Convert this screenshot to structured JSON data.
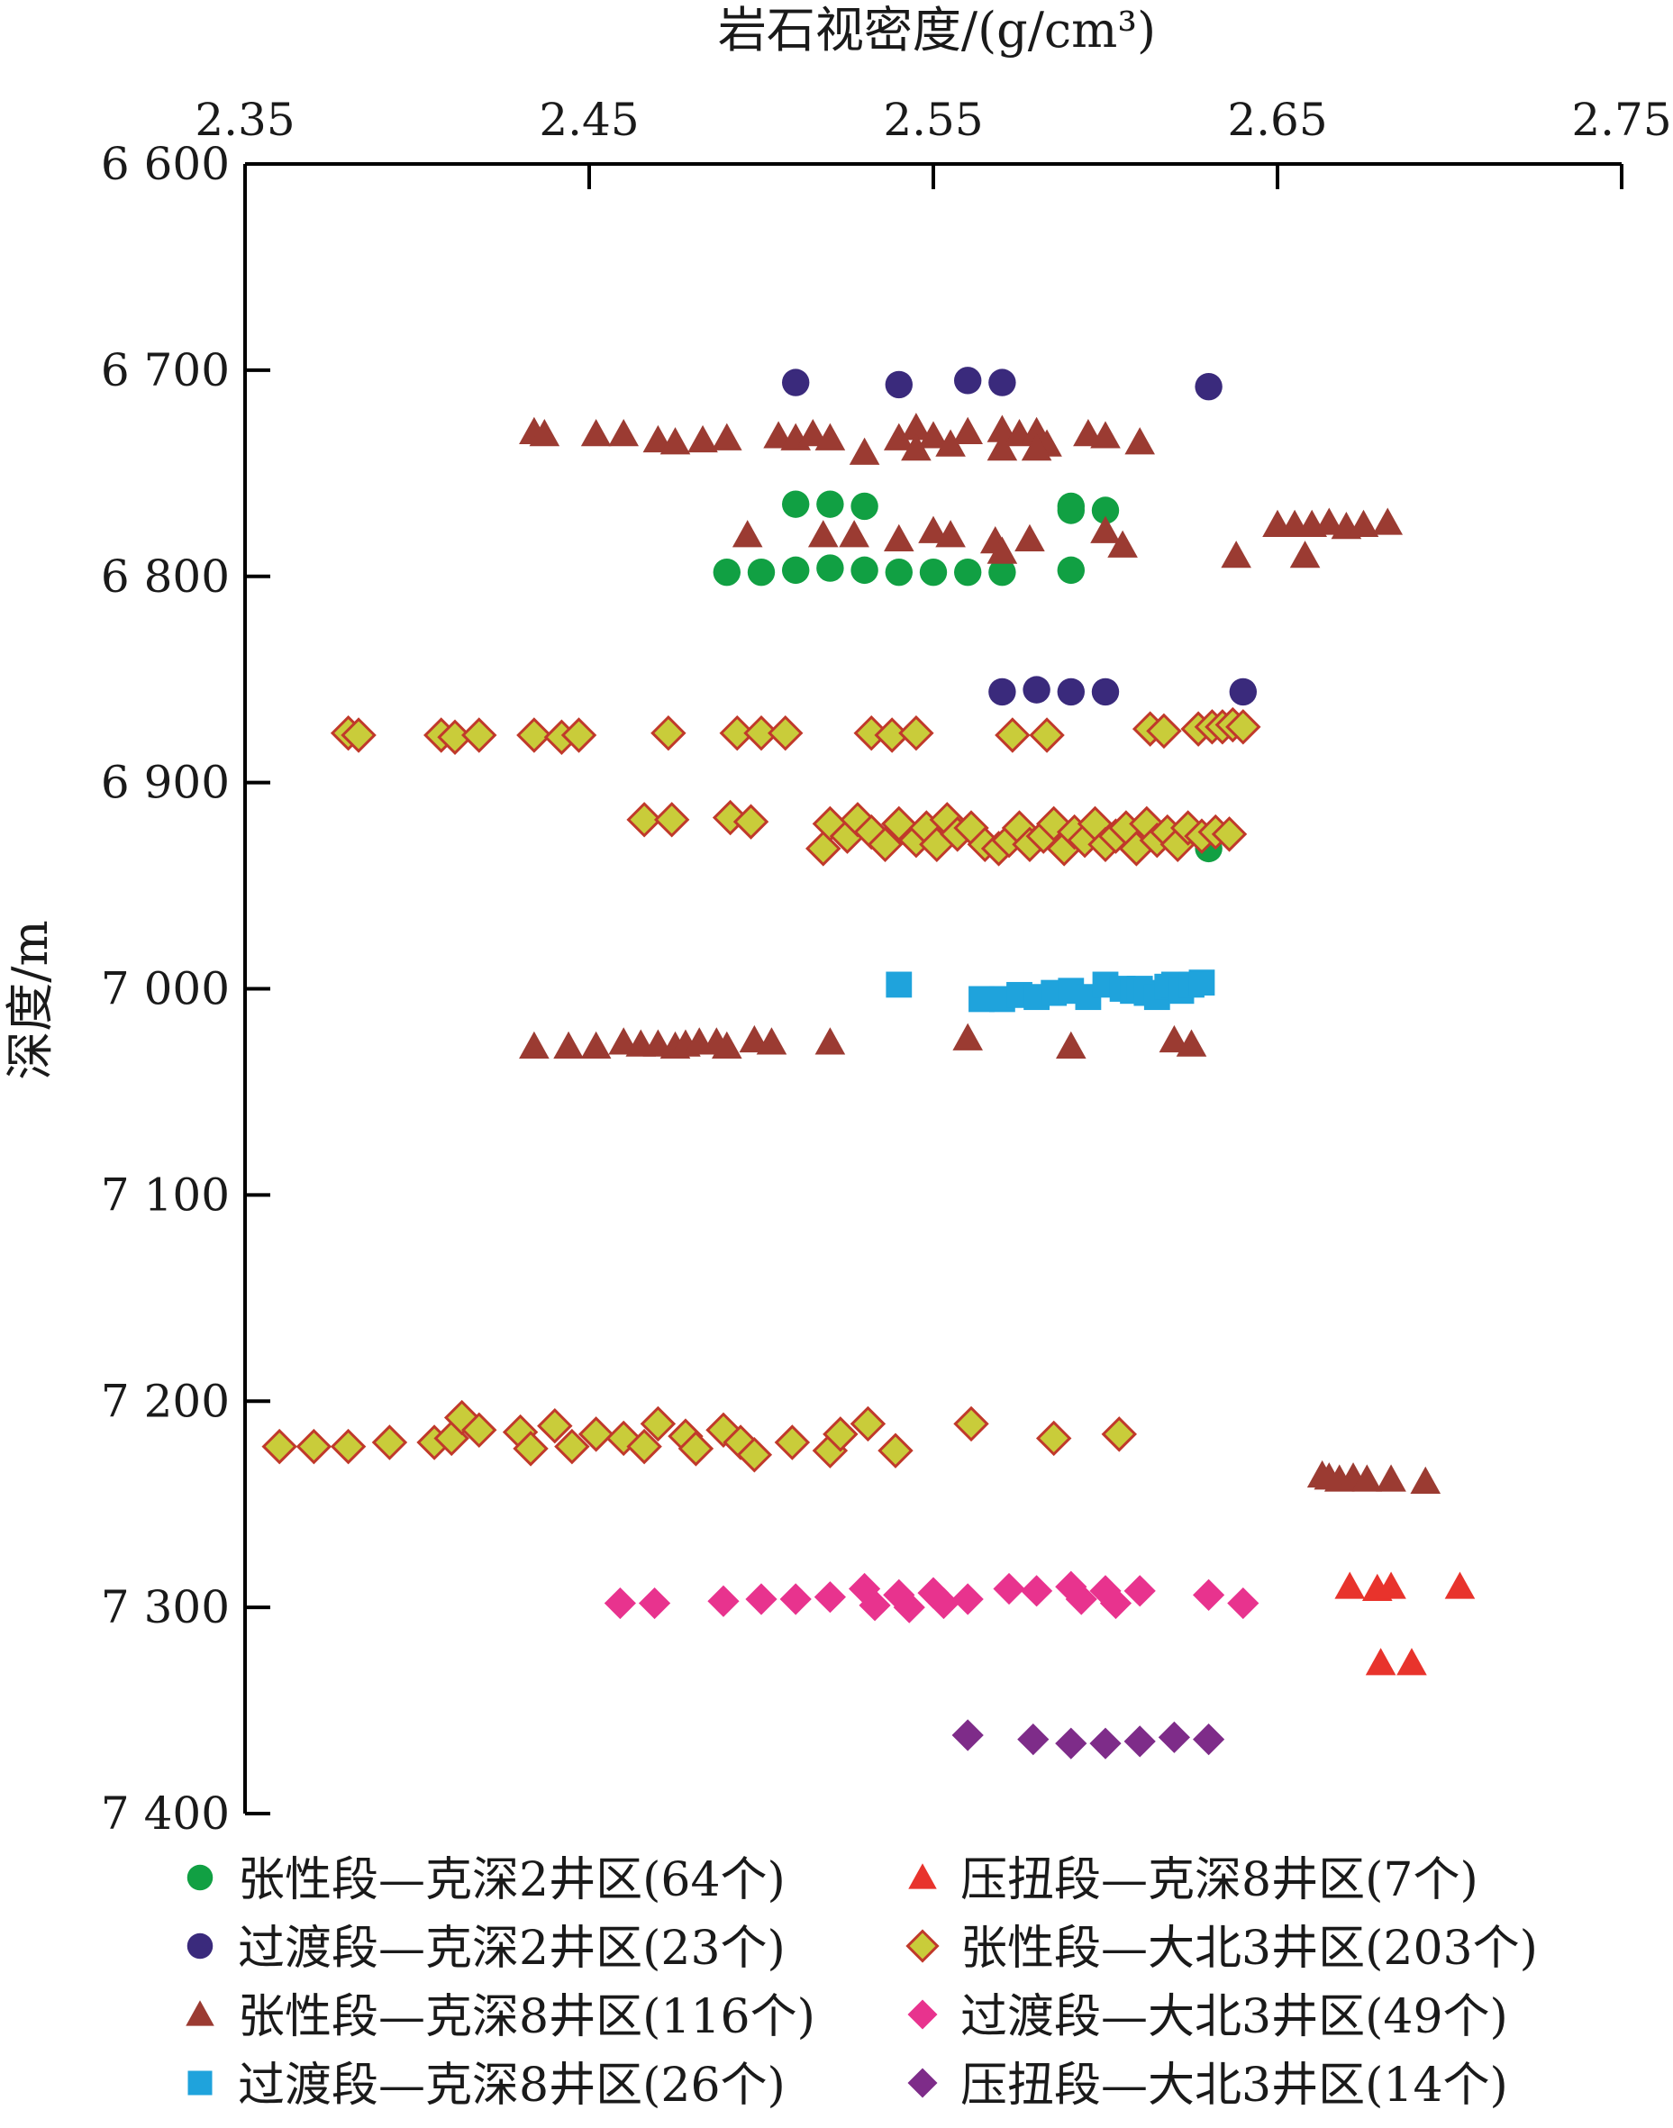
{
  "chart_data": {
    "type": "scatter",
    "xlabel": "岩石视密度/(g/cm³)",
    "ylabel": "深度/m",
    "x_axis_position": "top",
    "y_axis_inverted": true,
    "xlim": [
      2.35,
      2.75
    ],
    "ylim": [
      6600,
      7400
    ],
    "x_ticks": [
      2.35,
      2.45,
      2.55,
      2.65,
      2.75
    ],
    "x_tick_labels": [
      "2.35",
      "2.45",
      "2.55",
      "2.65",
      "2.75"
    ],
    "y_ticks": [
      6600,
      6700,
      6800,
      6900,
      7000,
      7100,
      7200,
      7300,
      7400
    ],
    "y_tick_labels": [
      "6 600",
      "6 700",
      "6 800",
      "6 900",
      "7 000",
      "7 100",
      "7 200",
      "7 300",
      "7 400"
    ],
    "grid": false,
    "legend_position": "bottom",
    "series": [
      {
        "name": "张性段—克深2井区(64个)",
        "color": "#11a043",
        "marker": "circle",
        "points": [
          [
            2.51,
            6765
          ],
          [
            2.52,
            6765
          ],
          [
            2.53,
            6766
          ],
          [
            2.59,
            6766
          ],
          [
            2.59,
            6768
          ],
          [
            2.6,
            6768
          ],
          [
            2.49,
            6798
          ],
          [
            2.5,
            6798
          ],
          [
            2.51,
            6797
          ],
          [
            2.52,
            6796
          ],
          [
            2.53,
            6797
          ],
          [
            2.54,
            6798
          ],
          [
            2.55,
            6798
          ],
          [
            2.56,
            6798
          ],
          [
            2.57,
            6798
          ],
          [
            2.59,
            6797
          ],
          [
            2.63,
            6932
          ]
        ]
      },
      {
        "name": "过渡段—克深2井区(23个)",
        "color": "#3a2a7c",
        "marker": "circle",
        "points": [
          [
            2.51,
            6706
          ],
          [
            2.54,
            6707
          ],
          [
            2.56,
            6705
          ],
          [
            2.57,
            6706
          ],
          [
            2.63,
            6708
          ],
          [
            2.57,
            6856
          ],
          [
            2.58,
            6855
          ],
          [
            2.59,
            6856
          ],
          [
            2.6,
            6856
          ],
          [
            2.64,
            6856
          ]
        ]
      },
      {
        "name": "张性段—克深8井区(116个)",
        "color": "#9b3b32",
        "marker": "triangle",
        "points": [
          [
            2.434,
            6730
          ],
          [
            2.437,
            6731
          ],
          [
            2.452,
            6731
          ],
          [
            2.46,
            6731
          ],
          [
            2.47,
            6734
          ],
          [
            2.475,
            6735
          ],
          [
            2.483,
            6734
          ],
          [
            2.49,
            6733
          ],
          [
            2.505,
            6732
          ],
          [
            2.51,
            6733
          ],
          [
            2.515,
            6731
          ],
          [
            2.52,
            6733
          ],
          [
            2.53,
            6740
          ],
          [
            2.54,
            6733
          ],
          [
            2.545,
            6728
          ],
          [
            2.55,
            6732
          ],
          [
            2.555,
            6736
          ],
          [
            2.56,
            6730
          ],
          [
            2.57,
            6729
          ],
          [
            2.575,
            6731
          ],
          [
            2.58,
            6730
          ],
          [
            2.583,
            6736
          ],
          [
            2.595,
            6731
          ],
          [
            2.6,
            6732
          ],
          [
            2.61,
            6735
          ],
          [
            2.545,
            6738
          ],
          [
            2.57,
            6738
          ],
          [
            2.58,
            6738
          ],
          [
            2.496,
            6780
          ],
          [
            2.518,
            6780
          ],
          [
            2.527,
            6780
          ],
          [
            2.54,
            6782
          ],
          [
            2.55,
            6778
          ],
          [
            2.555,
            6780
          ],
          [
            2.568,
            6783
          ],
          [
            2.578,
            6782
          ],
          [
            2.57,
            6788
          ],
          [
            2.6,
            6778
          ],
          [
            2.605,
            6785
          ],
          [
            2.638,
            6790
          ],
          [
            2.65,
            6775
          ],
          [
            2.655,
            6775
          ],
          [
            2.66,
            6775
          ],
          [
            2.665,
            6774
          ],
          [
            2.67,
            6776
          ],
          [
            2.675,
            6775
          ],
          [
            2.682,
            6774
          ],
          [
            2.658,
            6790
          ],
          [
            2.434,
            7028
          ],
          [
            2.444,
            7028
          ],
          [
            2.452,
            7028
          ],
          [
            2.46,
            7026
          ],
          [
            2.465,
            7027
          ],
          [
            2.47,
            7027
          ],
          [
            2.475,
            7028
          ],
          [
            2.478,
            7027
          ],
          [
            2.482,
            7026
          ],
          [
            2.487,
            7026
          ],
          [
            2.49,
            7028
          ],
          [
            2.498,
            7025
          ],
          [
            2.503,
            7026
          ],
          [
            2.52,
            7026
          ],
          [
            2.56,
            7024
          ],
          [
            2.59,
            7028
          ],
          [
            2.62,
            7025
          ],
          [
            2.625,
            7027
          ],
          [
            2.663,
            7236
          ],
          [
            2.665,
            7237
          ],
          [
            2.668,
            7238
          ],
          [
            2.672,
            7237
          ],
          [
            2.676,
            7238
          ],
          [
            2.683,
            7238
          ],
          [
            2.693,
            7239
          ]
        ]
      },
      {
        "name": "过渡段—克深8井区(26个)",
        "color": "#1fa3dc",
        "marker": "square",
        "points": [
          [
            2.54,
            6998
          ],
          [
            2.564,
            7005
          ],
          [
            2.57,
            7005
          ],
          [
            2.575,
            7003
          ],
          [
            2.58,
            7004
          ],
          [
            2.585,
            7002
          ],
          [
            2.59,
            7001
          ],
          [
            2.595,
            7004
          ],
          [
            2.6,
            6998
          ],
          [
            2.605,
            7000
          ],
          [
            2.608,
            7001
          ],
          [
            2.61,
            7000
          ],
          [
            2.612,
            7002
          ],
          [
            2.615,
            7004
          ],
          [
            2.618,
            6999
          ],
          [
            2.62,
            6998
          ],
          [
            2.622,
            7001
          ],
          [
            2.625,
            6998
          ],
          [
            2.628,
            6997
          ]
        ]
      },
      {
        "name": "压扭段—克深8井区(7个)",
        "color": "#e8332c",
        "marker": "triangle",
        "points": [
          [
            2.671,
            7290
          ],
          [
            2.679,
            7291
          ],
          [
            2.683,
            7290
          ],
          [
            2.703,
            7290
          ],
          [
            2.68,
            7327
          ],
          [
            2.689,
            7327
          ]
        ]
      },
      {
        "name": "张性段—大北3井区(203个)",
        "color": "#c9cc3a",
        "marker": "diamond",
        "points": [
          [
            2.38,
            6876
          ],
          [
            2.383,
            6877
          ],
          [
            2.407,
            6877
          ],
          [
            2.411,
            6878
          ],
          [
            2.418,
            6877
          ],
          [
            2.434,
            6877
          ],
          [
            2.442,
            6878
          ],
          [
            2.447,
            6877
          ],
          [
            2.473,
            6876
          ],
          [
            2.493,
            6876
          ],
          [
            2.5,
            6876
          ],
          [
            2.507,
            6876
          ],
          [
            2.532,
            6876
          ],
          [
            2.538,
            6877
          ],
          [
            2.545,
            6876
          ],
          [
            2.573,
            6877
          ],
          [
            2.583,
            6877
          ],
          [
            2.613,
            6874
          ],
          [
            2.617,
            6875
          ],
          [
            2.627,
            6874
          ],
          [
            2.631,
            6873
          ],
          [
            2.634,
            6873
          ],
          [
            2.637,
            6872
          ],
          [
            2.64,
            6873
          ],
          [
            2.466,
            6918
          ],
          [
            2.474,
            6918
          ],
          [
            2.491,
            6917
          ],
          [
            2.497,
            6919
          ],
          [
            2.518,
            6932
          ],
          [
            2.52,
            6920
          ],
          [
            2.525,
            6926
          ],
          [
            2.528,
            6918
          ],
          [
            2.532,
            6924
          ],
          [
            2.536,
            6930
          ],
          [
            2.54,
            6920
          ],
          [
            2.545,
            6928
          ],
          [
            2.548,
            6922
          ],
          [
            2.551,
            6930
          ],
          [
            2.554,
            6918
          ],
          [
            2.557,
            6925
          ],
          [
            2.561,
            6922
          ],
          [
            2.565,
            6930
          ],
          [
            2.569,
            6932
          ],
          [
            2.572,
            6928
          ],
          [
            2.575,
            6922
          ],
          [
            2.578,
            6930
          ],
          [
            2.582,
            6926
          ],
          [
            2.585,
            6920
          ],
          [
            2.588,
            6932
          ],
          [
            2.591,
            6924
          ],
          [
            2.594,
            6928
          ],
          [
            2.597,
            6920
          ],
          [
            2.6,
            6930
          ],
          [
            2.603,
            6926
          ],
          [
            2.606,
            6922
          ],
          [
            2.609,
            6932
          ],
          [
            2.612,
            6920
          ],
          [
            2.615,
            6928
          ],
          [
            2.618,
            6924
          ],
          [
            2.621,
            6930
          ],
          [
            2.624,
            6922
          ],
          [
            2.628,
            6926
          ],
          [
            2.632,
            6924
          ],
          [
            2.636,
            6925
          ],
          [
            2.36,
            7222
          ],
          [
            2.37,
            7222
          ],
          [
            2.38,
            7222
          ],
          [
            2.392,
            7220
          ],
          [
            2.405,
            7220
          ],
          [
            2.41,
            7218
          ],
          [
            2.413,
            7208
          ],
          [
            2.418,
            7214
          ],
          [
            2.43,
            7215
          ],
          [
            2.433,
            7223
          ],
          [
            2.44,
            7212
          ],
          [
            2.445,
            7222
          ],
          [
            2.452,
            7216
          ],
          [
            2.46,
            7218
          ],
          [
            2.466,
            7222
          ],
          [
            2.47,
            7211
          ],
          [
            2.478,
            7217
          ],
          [
            2.481,
            7223
          ],
          [
            2.489,
            7214
          ],
          [
            2.494,
            7220
          ],
          [
            2.498,
            7226
          ],
          [
            2.509,
            7220
          ],
          [
            2.52,
            7224
          ],
          [
            2.523,
            7216
          ],
          [
            2.531,
            7211
          ],
          [
            2.539,
            7224
          ],
          [
            2.561,
            7211
          ],
          [
            2.585,
            7218
          ],
          [
            2.604,
            7216
          ]
        ]
      },
      {
        "name": "过渡段—大北3井区(49个)",
        "color": "#e8338e",
        "marker": "diamond",
        "points": [
          [
            2.459,
            7298
          ],
          [
            2.469,
            7298
          ],
          [
            2.489,
            7297
          ],
          [
            2.5,
            7296
          ],
          [
            2.51,
            7296
          ],
          [
            2.52,
            7295
          ],
          [
            2.53,
            7291
          ],
          [
            2.533,
            7299
          ],
          [
            2.54,
            7294
          ],
          [
            2.543,
            7300
          ],
          [
            2.55,
            7293
          ],
          [
            2.553,
            7298
          ],
          [
            2.56,
            7296
          ],
          [
            2.572,
            7291
          ],
          [
            2.58,
            7292
          ],
          [
            2.59,
            7290
          ],
          [
            2.593,
            7296
          ],
          [
            2.6,
            7292
          ],
          [
            2.603,
            7298
          ],
          [
            2.61,
            7292
          ],
          [
            2.63,
            7294
          ],
          [
            2.64,
            7298
          ]
        ]
      },
      {
        "name": "压扭段—大北3井区(14个)",
        "color": "#7e2c89",
        "marker": "diamond",
        "points": [
          [
            2.56,
            7362
          ],
          [
            2.579,
            7364
          ],
          [
            2.59,
            7366
          ],
          [
            2.6,
            7366
          ],
          [
            2.61,
            7365
          ],
          [
            2.62,
            7363
          ],
          [
            2.63,
            7364
          ]
        ]
      }
    ]
  }
}
